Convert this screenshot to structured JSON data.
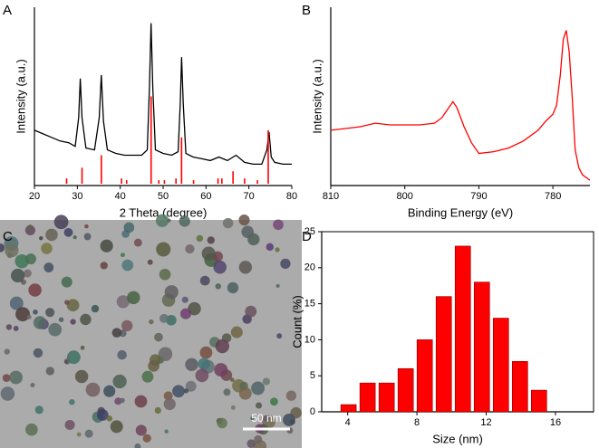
{
  "chart_data": [
    {
      "type": "line",
      "panel": "A",
      "xlabel": "2 Theta (degree)",
      "ylabel": "Intensity (a.u.)",
      "xlim": [
        20,
        80
      ],
      "xticks": [
        20,
        30,
        40,
        50,
        60,
        70,
        80
      ],
      "ylim": [
        0,
        100
      ],
      "yticks": [],
      "series": [
        {
          "color": "#000000",
          "x": [
            20,
            22,
            24,
            26,
            28,
            29.5,
            30.3,
            30.7,
            31.1,
            32,
            34,
            35.1,
            35.6,
            36.1,
            37,
            39,
            41,
            43,
            45,
            46.3,
            46.8,
            47.2,
            47.6,
            48.2,
            50,
            52,
            53.5,
            54,
            54.3,
            54.7,
            55.3,
            57,
            59,
            61,
            63,
            65,
            67,
            69,
            71,
            73,
            74.2,
            74.7,
            75.2,
            76,
            78,
            80
          ],
          "values": [
            31,
            29,
            27,
            25,
            24,
            22,
            38,
            60,
            38,
            21,
            20,
            38,
            62,
            36,
            20,
            18,
            17,
            17,
            17,
            20,
            55,
            91,
            55,
            20,
            18,
            17,
            19,
            46,
            72,
            46,
            18,
            16,
            15,
            14,
            16,
            14,
            17,
            13,
            12,
            12,
            20,
            30,
            16,
            13,
            12,
            12
          ]
        },
        {
          "style": "stick",
          "color": "#ff0000",
          "x": [
            27.5,
            31.1,
            35.6,
            40.3,
            41.5,
            47.2,
            49.0,
            50.3,
            53.0,
            54.3,
            57.1,
            62.8,
            63.7,
            66.3,
            69.0,
            72.0,
            74.5
          ],
          "values": [
            4,
            10,
            17,
            4,
            3,
            50,
            3,
            3,
            4,
            27,
            3,
            4,
            4,
            8,
            4,
            3,
            31
          ]
        }
      ]
    },
    {
      "type": "line",
      "panel": "B",
      "xlabel": "Binding Energy (eV)",
      "ylabel": "Intensity (a.u.)",
      "xlim": [
        810,
        775
      ],
      "xticks": [
        810,
        800,
        790,
        780
      ],
      "ylim": [
        0,
        100
      ],
      "yticks": [],
      "series": [
        {
          "color": "#ff0000",
          "x": [
            810,
            808,
            806,
            804,
            802,
            800,
            798,
            796,
            795,
            794,
            793.5,
            793,
            792,
            791,
            790,
            788,
            786,
            784,
            782,
            781,
            780,
            779.5,
            779,
            778.6,
            778.2,
            777.8,
            777.4,
            777,
            776.5,
            776,
            775
          ],
          "values": [
            31,
            32,
            33,
            35,
            34,
            34,
            34,
            35,
            38,
            44,
            47,
            44,
            33,
            24,
            18,
            19,
            21,
            25,
            31,
            36,
            40,
            45,
            62,
            82,
            87,
            75,
            50,
            20,
            10,
            6,
            3
          ]
        }
      ]
    },
    {
      "type": "image",
      "panel": "C",
      "scale_bar": "50 nm"
    },
    {
      "type": "histogram",
      "panel": "D",
      "xlabel": "Size (nm)",
      "ylabel": "Count (%)",
      "bins": [
        3.5,
        4.6,
        5.7,
        6.8,
        7.9,
        9.0,
        10.1,
        11.2,
        12.3,
        13.4,
        14.5,
        15.6
      ],
      "counts": [
        1,
        4,
        4,
        6,
        10,
        16,
        23,
        18,
        13,
        7,
        3
      ],
      "color": "#ff0000",
      "xlim": [
        2.5,
        18.2
      ],
      "xticks": [
        4,
        8,
        12,
        16
      ],
      "ylim": [
        0,
        25
      ],
      "yticks": [
        0,
        5,
        10,
        15,
        20,
        25
      ]
    }
  ]
}
